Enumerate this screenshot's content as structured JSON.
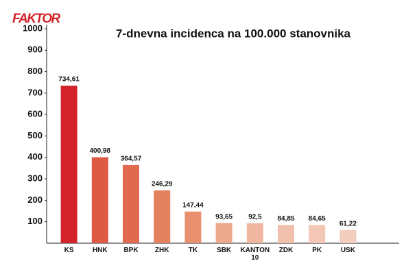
{
  "logo": "FAKTOR",
  "chart_data": {
    "type": "bar",
    "title": "7-dnevna incidenca na 100.000 stanovnika",
    "categories": [
      "KS",
      "HNK",
      "BPK",
      "ZHK",
      "TK",
      "SBK",
      "KANTON 10",
      "ZDK",
      "PK",
      "USK"
    ],
    "values": [
      734.61,
      400.98,
      364.57,
      246.29,
      147.44,
      93.65,
      92.5,
      84.85,
      84.65,
      61.22
    ],
    "value_labels": [
      "734,61",
      "400,98",
      "364,57",
      "246,29",
      "147,44",
      "93,65",
      "92,5",
      "84,85",
      "84,65",
      "61,22"
    ],
    "colors": [
      "#d2232a",
      "#dd5a45",
      "#e06a4f",
      "#e4825f",
      "#e8906f",
      "#eca98c",
      "#efb7a0",
      "#f1c0ad",
      "#f2c7b6",
      "#f3cdbe"
    ],
    "ylim": [
      0,
      1000
    ],
    "yticks": [
      100,
      200,
      300,
      400,
      500,
      600,
      700,
      800,
      900,
      1000
    ],
    "grid": false
  }
}
